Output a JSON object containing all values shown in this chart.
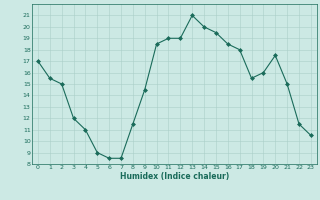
{
  "x": [
    0,
    1,
    2,
    3,
    4,
    5,
    6,
    7,
    8,
    9,
    10,
    11,
    12,
    13,
    14,
    15,
    16,
    17,
    18,
    19,
    20,
    21,
    22,
    23
  ],
  "y": [
    17,
    15.5,
    15,
    12,
    11,
    9,
    8.5,
    8.5,
    11.5,
    14.5,
    18.5,
    19,
    19,
    21,
    20,
    19.5,
    18.5,
    18,
    15.5,
    16,
    17.5,
    15,
    11.5,
    10.5
  ],
  "line_color": "#1a6b5a",
  "marker": "D",
  "marker_size": 2,
  "bg_color": "#cce9e4",
  "grid_color": "#aacfc9",
  "xlabel": "Humidex (Indice chaleur)",
  "ylim": [
    8,
    22
  ],
  "xlim": [
    -0.5,
    23.5
  ],
  "yticks": [
    8,
    9,
    10,
    11,
    12,
    13,
    14,
    15,
    16,
    17,
    18,
    19,
    20,
    21
  ],
  "xticks": [
    0,
    1,
    2,
    3,
    4,
    5,
    6,
    7,
    8,
    9,
    10,
    11,
    12,
    13,
    14,
    15,
    16,
    17,
    18,
    19,
    20,
    21,
    22,
    23
  ],
  "tick_color": "#1a6b5a",
  "label_color": "#1a6b5a"
}
